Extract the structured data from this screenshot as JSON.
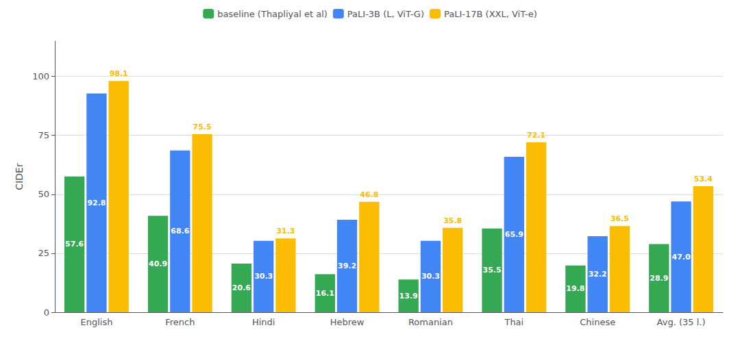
{
  "chart_data": {
    "type": "bar",
    "categories": [
      "English",
      "French",
      "Hindi",
      "Hebrew",
      "Romanian",
      "Thai",
      "Chinese",
      "Avg. (35 l.)"
    ],
    "series": [
      {
        "name": "baseline (Thapliyal et al)",
        "color": "#34a853",
        "values": [
          57.6,
          40.9,
          20.6,
          16.1,
          13.9,
          35.5,
          19.8,
          28.9
        ],
        "value_labels": [
          "57.6",
          "40.9",
          "20.6",
          "16.1",
          "13.9",
          "35.5",
          "19.8",
          "28.9"
        ]
      },
      {
        "name": "PaLI-3B (L, ViT-G)",
        "color": "#4285f4",
        "values": [
          92.8,
          68.6,
          30.3,
          39.2,
          30.3,
          65.9,
          32.2,
          47.0
        ],
        "value_labels": [
          "92.8",
          "68.6",
          "30.3",
          "39.2",
          "30.3",
          "65.9",
          "32.2",
          "47.0"
        ]
      },
      {
        "name": "PaLI-17B (XXL, ViT-e)",
        "color": "#fbbc04",
        "values": [
          98.1,
          75.5,
          31.3,
          46.8,
          35.8,
          72.1,
          36.5,
          53.4
        ],
        "value_labels": [
          "98.1",
          "75.5",
          "31.3",
          "46.8",
          "35.8",
          "72.1",
          "36.5",
          "53.4"
        ]
      }
    ],
    "ylabel": "CIDEr",
    "ylim": [
      0,
      115
    ],
    "yticks": [
      0,
      25,
      50,
      75,
      100
    ],
    "grid": true,
    "legend": "top",
    "data_labels": true
  }
}
